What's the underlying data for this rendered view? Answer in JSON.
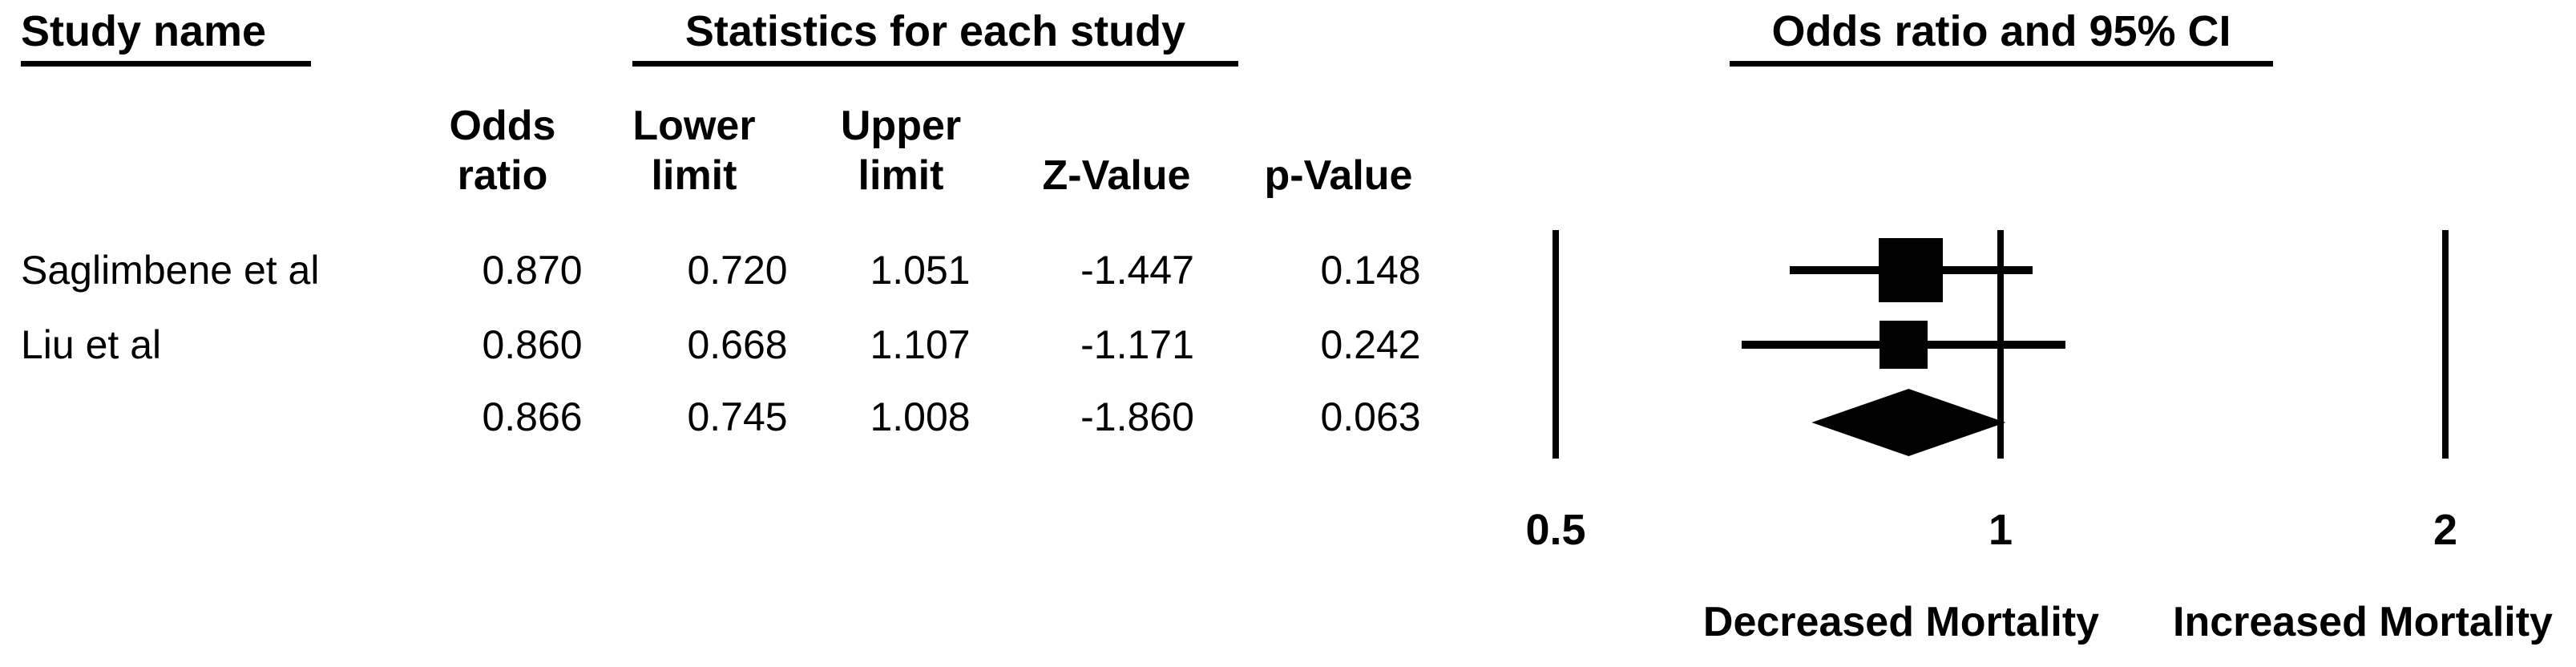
{
  "figure": {
    "group_headers": {
      "study_name": "Study name",
      "statistics": "Statistics for each study",
      "or_ci": "Odds ratio and 95% CI"
    },
    "columns": {
      "odds_ratio": "Odds\nratio",
      "lower_limit": "Lower\nlimit",
      "upper_limit": "Upper\nlimit",
      "z_value": "Z-Value",
      "p_value": "p-Value"
    }
  },
  "chart_data": {
    "type": "scatter",
    "subtype": "forest-plot-meta-analysis",
    "title": "Odds ratio and 95% CI",
    "x_axis": {
      "scale": "log2",
      "ticks": [
        "0.5",
        "1",
        "2"
      ],
      "range": [
        0.5,
        2
      ],
      "grid": "off"
    },
    "direction_labels": {
      "left": "Decreased Mortality",
      "right": "Increased Mortality"
    },
    "studies": [
      {
        "name": "Saglimbene et al",
        "odds_ratio": "0.870",
        "lower_limit": "0.720",
        "upper_limit": "1.051",
        "z_value": "-1.447",
        "p_value": "0.148",
        "marker": "square",
        "marker_size": 80
      },
      {
        "name": "Liu et al",
        "odds_ratio": "0.860",
        "lower_limit": "0.668",
        "upper_limit": "1.107",
        "z_value": "-1.171",
        "p_value": "0.242",
        "marker": "square",
        "marker_size": 60
      }
    ],
    "summary": {
      "name": "",
      "odds_ratio": "0.866",
      "lower_limit": "0.745",
      "upper_limit": "1.008",
      "z_value": "-1.860",
      "p_value": "0.063",
      "marker": "diamond"
    },
    "colors": {
      "marker": "#000000",
      "line": "#000000",
      "text": "#000000",
      "background": "#ffffff"
    }
  }
}
